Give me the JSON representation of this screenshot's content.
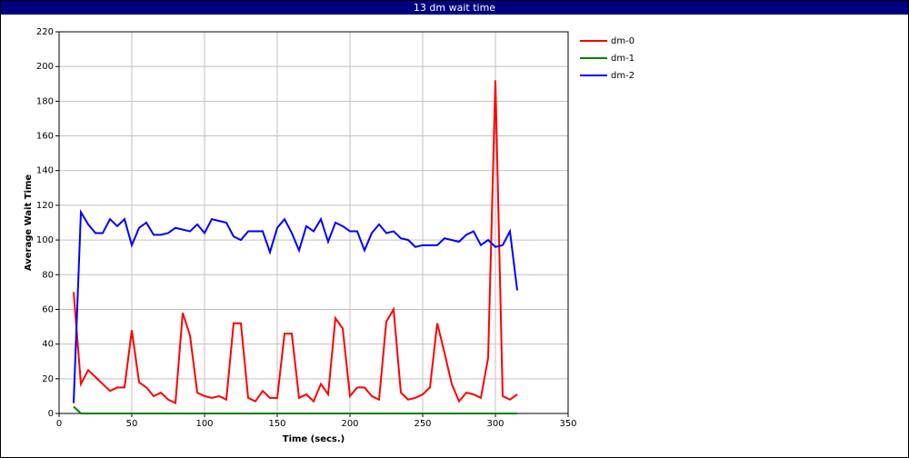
{
  "chart_data": {
    "type": "line",
    "title": "13 dm wait time",
    "x_label": "Time (secs.)",
    "y_label": "Average Wait Time",
    "xlim": [
      0,
      350
    ],
    "xticks": [
      0,
      50,
      100,
      150,
      200,
      250,
      300,
      350
    ],
    "ylim": [
      0,
      220
    ],
    "yticks": [
      0,
      20,
      40,
      60,
      80,
      100,
      120,
      140,
      160,
      180,
      200,
      220
    ],
    "grid": true,
    "legend": "right",
    "x": [
      10,
      15,
      20,
      25,
      30,
      35,
      40,
      45,
      50,
      55,
      60,
      65,
      70,
      75,
      80,
      85,
      90,
      95,
      100,
      105,
      110,
      115,
      120,
      125,
      130,
      135,
      140,
      145,
      150,
      155,
      160,
      165,
      170,
      175,
      180,
      185,
      190,
      195,
      200,
      205,
      210,
      215,
      220,
      225,
      230,
      235,
      240,
      245,
      250,
      255,
      260,
      265,
      270,
      275,
      280,
      285,
      290,
      295,
      300,
      305,
      310,
      315
    ],
    "series": [
      {
        "name": "dm-0",
        "color": "#ff0000",
        "values": [
          70,
          17,
          25,
          21,
          17,
          13,
          15,
          15,
          48,
          18,
          15,
          10,
          12,
          8,
          6,
          58,
          45,
          12,
          10,
          9,
          10,
          8,
          52,
          52,
          9,
          7,
          13,
          9,
          9,
          46,
          46,
          9,
          11,
          7,
          17,
          11,
          55,
          49,
          10,
          15,
          15,
          10,
          8,
          53,
          60,
          12,
          8,
          9,
          11,
          15,
          52,
          35,
          17,
          7,
          12,
          11,
          9,
          32,
          192,
          10,
          8,
          11
        ]
      },
      {
        "name": "dm-1",
        "color": "#008000",
        "values": [
          4,
          0,
          0,
          0,
          0,
          0,
          0,
          0,
          0,
          0,
          0,
          0,
          0,
          0,
          0,
          0,
          0,
          0,
          0,
          0,
          0,
          0,
          0,
          0,
          0,
          0,
          0,
          0,
          0,
          0,
          0,
          0,
          0,
          0,
          0,
          0,
          0,
          0,
          0,
          0,
          0,
          0,
          0,
          0,
          0,
          0,
          0,
          0,
          0,
          0,
          0,
          0,
          0,
          0,
          0,
          0,
          0,
          0,
          0,
          0,
          0,
          0
        ]
      },
      {
        "name": "dm-2",
        "color": "#0000ff",
        "values": [
          6,
          116,
          109,
          104,
          104,
          112,
          108,
          112,
          97,
          107,
          110,
          103,
          103,
          104,
          107,
          106,
          105,
          109,
          104,
          112,
          111,
          110,
          102,
          100,
          105,
          105,
          105,
          93,
          107,
          112,
          104,
          94,
          108,
          105,
          112,
          99,
          110,
          108,
          105,
          105,
          94,
          104,
          109,
          104,
          105,
          101,
          100,
          96,
          97,
          97,
          97,
          101,
          100,
          99,
          103,
          105,
          97,
          100,
          96,
          97,
          105,
          71
        ]
      }
    ]
  }
}
